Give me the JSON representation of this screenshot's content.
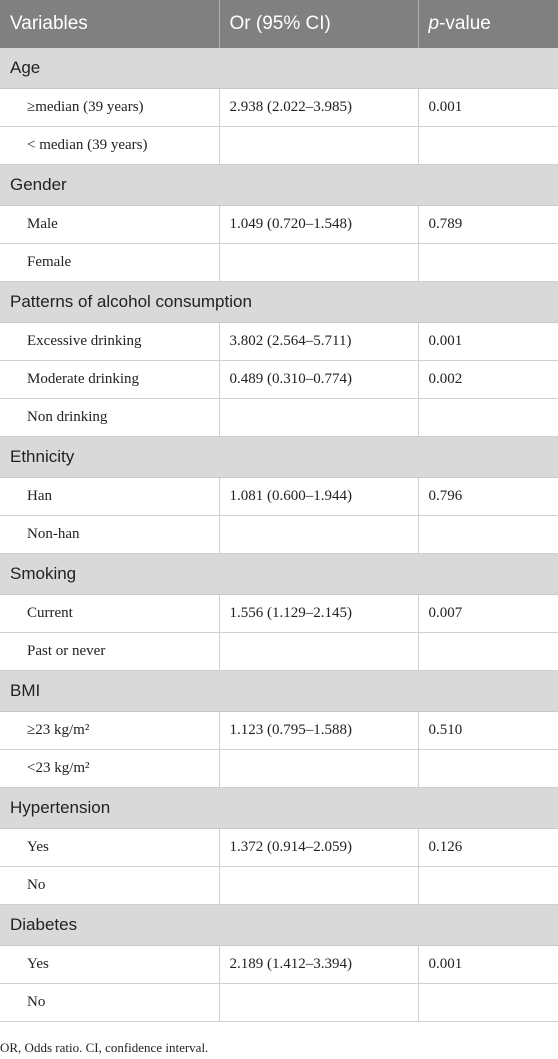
{
  "headers": {
    "variables": "Variables",
    "or": "Or (95% CI)",
    "p_italic": "p",
    "p_rest": "-value"
  },
  "groups": [
    {
      "label": "Age",
      "rows": [
        {
          "variable": "≥median (39 years)",
          "or": "2.938 (2.022–3.985)",
          "p": "0.001"
        },
        {
          "variable": "< median (39 years)",
          "or": "",
          "p": ""
        }
      ]
    },
    {
      "label": "Gender",
      "rows": [
        {
          "variable": "Male",
          "or": "1.049 (0.720–1.548)",
          "p": "0.789"
        },
        {
          "variable": "Female",
          "or": "",
          "p": ""
        }
      ]
    },
    {
      "label": "Patterns of alcohol consumption",
      "rows": [
        {
          "variable": "Excessive drinking",
          "or": "3.802 (2.564–5.711)",
          "p": "0.001"
        },
        {
          "variable": "Moderate drinking",
          "or": "0.489 (0.310–0.774)",
          "p": "0.002"
        },
        {
          "variable": "Non drinking",
          "or": "",
          "p": ""
        }
      ]
    },
    {
      "label": "Ethnicity",
      "rows": [
        {
          "variable": "Han",
          "or": "1.081 (0.600–1.944)",
          "p": "0.796"
        },
        {
          "variable": "Non-han",
          "or": "",
          "p": ""
        }
      ]
    },
    {
      "label": "Smoking",
      "rows": [
        {
          "variable": "Current",
          "or": "1.556 (1.129–2.145)",
          "p": "0.007"
        },
        {
          "variable": "Past or never",
          "or": "",
          "p": ""
        }
      ]
    },
    {
      "label": "BMI",
      "rows": [
        {
          "variable": "≥23 kg/m²",
          "or": "1.123 (0.795–1.588)",
          "p": "0.510"
        },
        {
          "variable": "<23 kg/m²",
          "or": "",
          "p": ""
        }
      ]
    },
    {
      "label": "Hypertension",
      "rows": [
        {
          "variable": "Yes",
          "or": "1.372 (0.914–2.059)",
          "p": "0.126"
        },
        {
          "variable": "No",
          "or": "",
          "p": ""
        }
      ]
    },
    {
      "label": "Diabetes",
      "rows": [
        {
          "variable": "Yes",
          "or": "2.189 (1.412–3.394)",
          "p": "0.001"
        },
        {
          "variable": "No",
          "or": "",
          "p": ""
        }
      ]
    }
  ],
  "footnote": "OR, Odds ratio. CI, confidence interval."
}
